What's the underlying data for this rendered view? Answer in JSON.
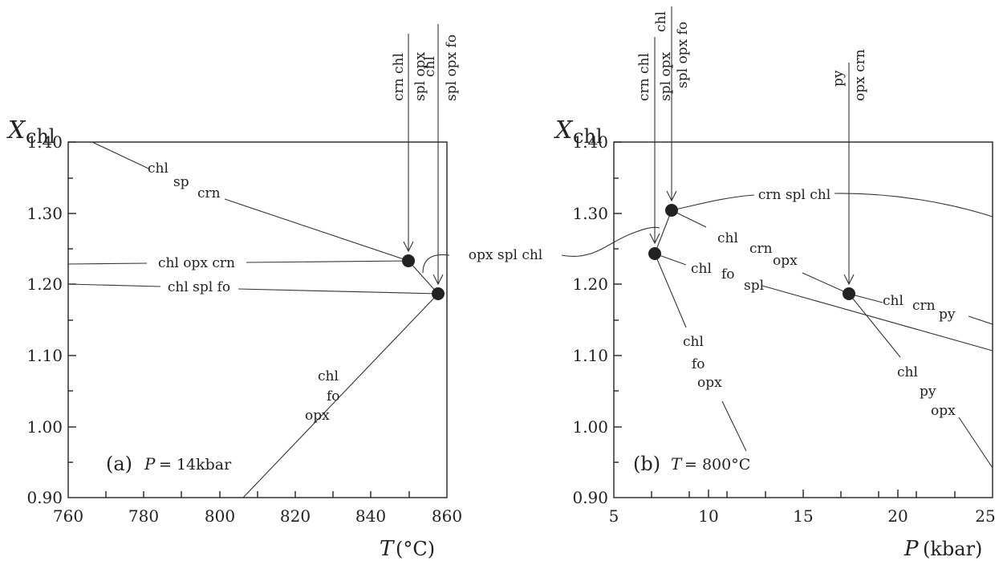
{
  "panel_a": {
    "y_title_main": "X",
    "y_title_sub": "chl",
    "y_ticks": [
      "1.40",
      "1.30",
      "1.20",
      "1.10",
      "1.00",
      "0.90"
    ],
    "x_ticks": [
      "760",
      "780",
      "800",
      "820",
      "840",
      "860"
    ],
    "x_title_var": "T",
    "x_title_unit": "(°C)",
    "tag": "(a)",
    "condition_var": "P",
    "condition_val": "= 14kbar",
    "top_labels": {
      "one_num": "crn chl",
      "one_den": "spl opx",
      "two_num": "chl",
      "two_den": "spl opx fo"
    },
    "curve_labels": {
      "chl": "chl",
      "sp": "sp",
      "crn": "crn",
      "chl_opx_crn": "chl opx crn",
      "chl_spl_fo": "chl spl fo",
      "chl_lower": "chl",
      "fo_lower": "fo",
      "opx_lower": "opx"
    }
  },
  "shared_curve_label": "opx spl chl",
  "panel_b": {
    "y_title_main": "X",
    "y_title_sub": "chl",
    "y_ticks": [
      "1.40",
      "1.30",
      "1.20",
      "1.10",
      "1.00",
      "0.90"
    ],
    "x_ticks": [
      "5",
      "10",
      "15",
      "20",
      "25"
    ],
    "x_title_var": "P",
    "x_title_unit": "(kbar)",
    "tag": "(b)",
    "condition_var": "T",
    "condition_val": "= 800°C",
    "top_labels": {
      "one_num": "crn chl",
      "one_den": "spl opx",
      "two_num": "chl",
      "two_den": "spl opx fo",
      "three_num": "py",
      "three_den": "opx crn"
    },
    "curve_labels": {
      "crn_spl_chl": "crn spl chl",
      "chl_1": "chl",
      "crn_1": "crn",
      "opx_1": "opx",
      "chl_2": "chl",
      "crn_2": "crn",
      "py_2": "py",
      "chl_3": "chl",
      "fo_3": "fo",
      "spl_3": "spl",
      "chl_4": "chl",
      "fo_4": "fo",
      "opx_4": "opx",
      "chl_5": "chl",
      "py_5": "py",
      "opx_5": "opx"
    }
  }
}
